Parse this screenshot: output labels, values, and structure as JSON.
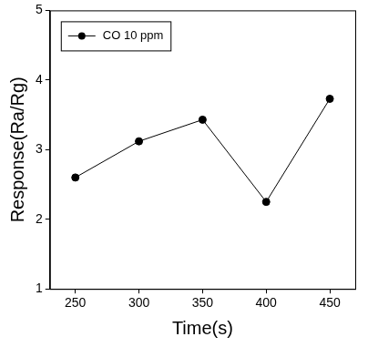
{
  "chart_data": {
    "type": "line",
    "x_label": "Time(s)",
    "y_label": "Response(Ra/Rg)",
    "x": [
      250,
      300,
      350,
      400,
      450
    ],
    "series": [
      {
        "name": "CO 10 ppm",
        "color": "#000000",
        "marker": "circle",
        "values": [
          2.6,
          3.12,
          3.43,
          2.25,
          3.73
        ]
      }
    ],
    "xlim": [
      230,
      470
    ],
    "xticks": [
      250,
      300,
      350,
      400,
      450
    ],
    "ylim": [
      1,
      5
    ],
    "yticks": [
      1,
      2,
      3,
      4,
      5
    ],
    "grid": false,
    "legend": "upper left"
  }
}
